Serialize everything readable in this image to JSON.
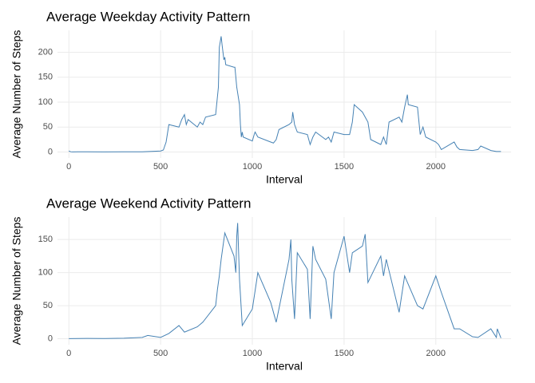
{
  "chart_data": [
    {
      "type": "line",
      "title": "Average Weekday Activity Pattern",
      "x_label": "Interval",
      "y_label": "Average Number of Steps",
      "color": "#4682b4",
      "grid": true,
      "xlim": [
        -62,
        2410
      ],
      "ylim": [
        -12,
        244
      ],
      "xticks": [
        0,
        500,
        1000,
        1500,
        2000
      ],
      "yticks": [
        0,
        50,
        100,
        150,
        200
      ],
      "x": [
        0,
        10,
        20,
        50,
        100,
        200,
        300,
        400,
        500,
        515,
        530,
        545,
        600,
        615,
        630,
        640,
        650,
        700,
        715,
        730,
        745,
        800,
        815,
        820,
        830,
        835,
        845,
        850,
        855,
        900,
        905,
        915,
        930,
        935,
        940,
        945,
        950,
        1000,
        1010,
        1015,
        1030,
        1100,
        1115,
        1130,
        1145,
        1200,
        1215,
        1220,
        1230,
        1245,
        1300,
        1315,
        1330,
        1345,
        1400,
        1415,
        1430,
        1445,
        1500,
        1530,
        1545,
        1555,
        1600,
        1630,
        1645,
        1700,
        1715,
        1730,
        1745,
        1800,
        1815,
        1830,
        1845,
        1850,
        1900,
        1915,
        1930,
        1945,
        2000,
        2015,
        2030,
        2100,
        2115,
        2130,
        2200,
        2230,
        2245,
        2300,
        2330,
        2355
      ],
      "values": [
        2,
        0.5,
        0.2,
        0.4,
        0.3,
        0.2,
        0.3,
        0.5,
        2,
        4,
        20,
        55,
        50,
        65,
        75,
        55,
        65,
        50,
        60,
        55,
        70,
        75,
        130,
        210,
        232,
        215,
        185,
        190,
        175,
        170,
        170,
        130,
        95,
        55,
        30,
        40,
        30,
        22,
        35,
        40,
        30,
        20,
        18,
        25,
        45,
        55,
        60,
        80,
        55,
        40,
        35,
        15,
        30,
        40,
        25,
        30,
        20,
        40,
        35,
        35,
        60,
        95,
        80,
        60,
        25,
        15,
        30,
        15,
        60,
        70,
        60,
        90,
        115,
        95,
        90,
        35,
        50,
        30,
        20,
        15,
        5,
        20,
        10,
        5,
        3,
        5,
        12,
        3,
        1,
        1
      ]
    },
    {
      "type": "line",
      "title": "Average Weekend Activity Pattern",
      "x_label": "Interval",
      "y_label": "Average Number of Steps",
      "color": "#4682b4",
      "grid": true,
      "xlim": [
        -62,
        2410
      ],
      "ylim": [
        -9,
        184
      ],
      "xticks": [
        0,
        500,
        1000,
        1500,
        2000
      ],
      "yticks": [
        0,
        50,
        100,
        150
      ],
      "x": [
        0,
        100,
        200,
        300,
        400,
        430,
        500,
        545,
        600,
        630,
        700,
        730,
        800,
        810,
        820,
        830,
        850,
        900,
        910,
        915,
        920,
        930,
        945,
        1000,
        1030,
        1100,
        1130,
        1200,
        1210,
        1215,
        1230,
        1245,
        1300,
        1315,
        1330,
        1345,
        1400,
        1430,
        1445,
        1500,
        1530,
        1545,
        1600,
        1615,
        1630,
        1700,
        1715,
        1730,
        1800,
        1830,
        1900,
        1930,
        2000,
        2030,
        2100,
        2130,
        2200,
        2230,
        2300,
        2330,
        2335,
        2355
      ],
      "values": [
        0.2,
        0.5,
        0.3,
        0.8,
        2,
        5,
        2,
        8,
        20,
        10,
        18,
        25,
        50,
        75,
        95,
        120,
        160,
        125,
        100,
        155,
        175,
        90,
        20,
        45,
        100,
        55,
        25,
        120,
        150,
        90,
        30,
        130,
        105,
        30,
        140,
        120,
        90,
        30,
        100,
        155,
        100,
        130,
        140,
        158,
        85,
        125,
        95,
        120,
        40,
        95,
        50,
        45,
        95,
        70,
        15,
        15,
        3,
        2,
        15,
        2,
        15,
        1
      ]
    }
  ]
}
